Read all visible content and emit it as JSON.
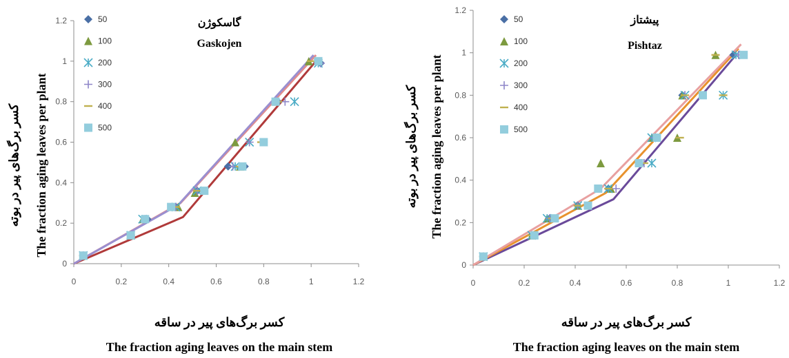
{
  "chart_data": [
    {
      "type": "scatter",
      "title": [
        "گاسکوژن",
        "Gaskojen"
      ],
      "xlabel": [
        "کسر برگ‌های پیر در ساقه",
        "The fraction aging leaves on the main stem"
      ],
      "ylabel": [
        "کسر برگ‌های پیر در بوته",
        "The fraction aging leaves per plant"
      ],
      "xlim": [
        0,
        1.2
      ],
      "ylim": [
        0,
        1.2
      ],
      "xticks": [
        "0",
        "0.2",
        "0.4",
        "0.6",
        "0.8",
        "1",
        "1.2"
      ],
      "yticks": [
        "0",
        "0.2",
        "0.4",
        "0.6",
        "0.8",
        "1",
        "1.2"
      ],
      "grid": false,
      "legend_position": "top-left",
      "series": [
        {
          "name": "50",
          "marker": "diamond",
          "color": "#4a6fa5",
          "points": [
            [
              0.04,
              0.04
            ],
            [
              0.24,
              0.14
            ],
            [
              0.31,
              0.22
            ],
            [
              0.43,
              0.28
            ],
            [
              0.52,
              0.36
            ],
            [
              0.65,
              0.48
            ],
            [
              0.72,
              0.48
            ],
            [
              0.8,
              0.6
            ],
            [
              0.86,
              0.8
            ],
            [
              1.04,
              0.99
            ]
          ]
        },
        {
          "name": "100",
          "marker": "triangle",
          "color": "#7d9a3f",
          "points": [
            [
              0.04,
              0.04
            ],
            [
              0.24,
              0.14
            ],
            [
              0.29,
              0.22
            ],
            [
              0.44,
              0.28
            ],
            [
              0.51,
              0.35
            ],
            [
              0.68,
              0.6
            ],
            [
              0.7,
              0.48
            ],
            [
              0.8,
              0.6
            ],
            [
              0.85,
              0.8
            ],
            [
              0.99,
              1.0
            ]
          ]
        },
        {
          "name": "200",
          "marker": "asterisk",
          "color": "#4bacc6",
          "points": [
            [
              0.04,
              0.04
            ],
            [
              0.24,
              0.14
            ],
            [
              0.29,
              0.22
            ],
            [
              0.43,
              0.28
            ],
            [
              0.52,
              0.36
            ],
            [
              0.68,
              0.48
            ],
            [
              0.74,
              0.6
            ],
            [
              0.93,
              0.8
            ],
            [
              1.03,
              0.99
            ]
          ]
        },
        {
          "name": "300",
          "marker": "plus",
          "color": "#8e86c8",
          "points": [
            [
              0.04,
              0.04
            ],
            [
              0.24,
              0.14
            ],
            [
              0.3,
              0.22
            ],
            [
              0.43,
              0.28
            ],
            [
              0.52,
              0.36
            ],
            [
              0.67,
              0.48
            ],
            [
              0.74,
              0.6
            ],
            [
              0.89,
              0.8
            ],
            [
              1.04,
              0.99
            ]
          ]
        },
        {
          "name": "400",
          "marker": "dash",
          "color": "#c0b050",
          "points": [
            [
              0.04,
              0.04
            ],
            [
              0.24,
              0.14
            ],
            [
              0.3,
              0.22
            ],
            [
              0.43,
              0.28
            ],
            [
              0.52,
              0.36
            ],
            [
              0.7,
              0.48
            ],
            [
              0.79,
              0.6
            ],
            [
              0.86,
              0.8
            ],
            [
              1.0,
              1.0
            ]
          ]
        },
        {
          "name": "500",
          "marker": "square",
          "color": "#93cddd",
          "points": [
            [
              0.04,
              0.04
            ],
            [
              0.24,
              0.14
            ],
            [
              0.3,
              0.22
            ],
            [
              0.41,
              0.28
            ],
            [
              0.55,
              0.36
            ],
            [
              0.71,
              0.48
            ],
            [
              0.8,
              0.6
            ],
            [
              0.85,
              0.8
            ],
            [
              1.03,
              1.0
            ]
          ]
        }
      ],
      "fit_lines": [
        {
          "color": "#b03a3a",
          "points": [
            [
              0,
              0
            ],
            [
              0.46,
              0.23
            ],
            [
              1.02,
              1.0
            ]
          ]
        },
        {
          "color": "#e38c8c",
          "points": [
            [
              0,
              0
            ],
            [
              0.45,
              0.3
            ],
            [
              1.02,
              1.03
            ]
          ]
        },
        {
          "color": "#9a8fd0",
          "points": [
            [
              0,
              0
            ],
            [
              0.44,
              0.29
            ],
            [
              1.01,
              1.03
            ]
          ]
        }
      ]
    },
    {
      "type": "scatter",
      "title": [
        "پیشتاز",
        "Pishtaz"
      ],
      "xlabel": [
        "کسر برگ‌های پیر در ساقه",
        "The fraction aging leaves on the main stem"
      ],
      "ylabel": [
        "کسر برگ‌های پیر در بوته",
        "The fraction aging leaves per plant"
      ],
      "xlim": [
        0,
        1.2
      ],
      "ylim": [
        0,
        1.2
      ],
      "xticks": [
        "0",
        "0.2",
        "0.4",
        "0.6",
        "0.8",
        "1",
        "1.2"
      ],
      "yticks": [
        "0",
        "0.2",
        "0.4",
        "0.6",
        "0.8",
        "1",
        "1.2"
      ],
      "grid": false,
      "legend_position": "top-left",
      "series": [
        {
          "name": "50",
          "marker": "diamond",
          "color": "#4a6fa5",
          "points": [
            [
              0.04,
              0.04
            ],
            [
              0.23,
              0.14
            ],
            [
              0.3,
              0.22
            ],
            [
              0.41,
              0.28
            ],
            [
              0.53,
              0.36
            ],
            [
              0.65,
              0.48
            ],
            [
              0.71,
              0.6
            ],
            [
              0.82,
              0.8
            ],
            [
              1.02,
              0.99
            ]
          ]
        },
        {
          "name": "100",
          "marker": "triangle",
          "color": "#7d9a3f",
          "points": [
            [
              0.04,
              0.04
            ],
            [
              0.23,
              0.14
            ],
            [
              0.29,
              0.22
            ],
            [
              0.41,
              0.28
            ],
            [
              0.5,
              0.48
            ],
            [
              0.54,
              0.36
            ],
            [
              0.7,
              0.6
            ],
            [
              0.8,
              0.6
            ],
            [
              0.82,
              0.8
            ],
            [
              0.95,
              0.99
            ]
          ]
        },
        {
          "name": "200",
          "marker": "asterisk",
          "color": "#4bacc6",
          "points": [
            [
              0.04,
              0.04
            ],
            [
              0.23,
              0.14
            ],
            [
              0.29,
              0.22
            ],
            [
              0.41,
              0.28
            ],
            [
              0.53,
              0.36
            ],
            [
              0.7,
              0.48
            ],
            [
              0.7,
              0.6
            ],
            [
              0.83,
              0.8
            ],
            [
              0.98,
              0.8
            ],
            [
              1.03,
              0.99
            ]
          ]
        },
        {
          "name": "300",
          "marker": "plus",
          "color": "#8e86c8",
          "points": [
            [
              0.04,
              0.04
            ],
            [
              0.23,
              0.14
            ],
            [
              0.3,
              0.22
            ],
            [
              0.41,
              0.28
            ],
            [
              0.56,
              0.36
            ],
            [
              0.67,
              0.48
            ],
            [
              0.71,
              0.6
            ],
            [
              0.83,
              0.8
            ],
            [
              1.04,
              0.99
            ]
          ]
        },
        {
          "name": "400",
          "marker": "dash",
          "color": "#c0b050",
          "points": [
            [
              0.04,
              0.04
            ],
            [
              0.23,
              0.14
            ],
            [
              0.31,
              0.22
            ],
            [
              0.41,
              0.28
            ],
            [
              0.53,
              0.36
            ],
            [
              0.67,
              0.48
            ],
            [
              0.81,
              0.6
            ],
            [
              0.83,
              0.8
            ],
            [
              0.98,
              0.8
            ],
            [
              0.95,
              0.99
            ]
          ]
        },
        {
          "name": "500",
          "marker": "square",
          "color": "#93cddd",
          "points": [
            [
              0.04,
              0.04
            ],
            [
              0.24,
              0.14
            ],
            [
              0.32,
              0.22
            ],
            [
              0.45,
              0.28
            ],
            [
              0.49,
              0.36
            ],
            [
              0.65,
              0.48
            ],
            [
              0.72,
              0.6
            ],
            [
              0.9,
              0.8
            ],
            [
              1.06,
              0.99
            ]
          ]
        }
      ],
      "fit_lines": [
        {
          "color": "#6a4a9a",
          "points": [
            [
              0,
              0
            ],
            [
              0.55,
              0.31
            ],
            [
              1.03,
              0.99
            ]
          ]
        },
        {
          "color": "#e8922d",
          "points": [
            [
              0,
              0
            ],
            [
              0.52,
              0.34
            ],
            [
              1.04,
              1.02
            ]
          ]
        },
        {
          "color": "#e8a0a0",
          "points": [
            [
              0,
              0
            ],
            [
              0.5,
              0.36
            ],
            [
              1.05,
              1.04
            ]
          ]
        }
      ]
    }
  ]
}
